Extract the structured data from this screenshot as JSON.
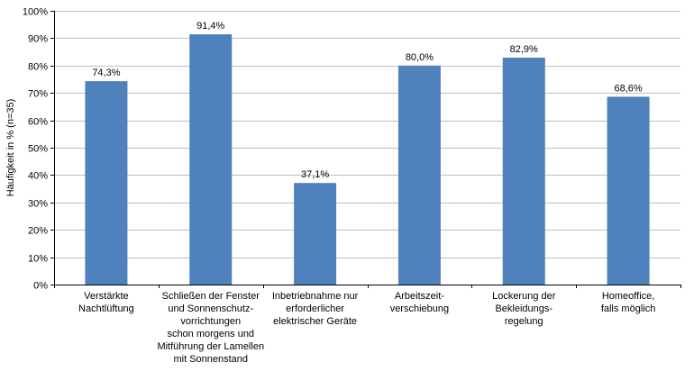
{
  "chart_data": {
    "type": "bar",
    "ylabel": "Häufigkeit in % (n=35)",
    "ylim": [
      0,
      100
    ],
    "yticks": [
      "0%",
      "10%",
      "20%",
      "30%",
      "40%",
      "50%",
      "60%",
      "70%",
      "80%",
      "90%",
      "100%"
    ],
    "grid": true,
    "bar_color": "#4f81bd",
    "categories": [
      [
        "Verstärkte",
        "Nachtlüftung"
      ],
      [
        "Schließen der Fenster",
        "und Sonnenschutz-",
        "vorrichtungen",
        "schon morgens und",
        "Mitführung der Lamellen",
        "mit Sonnenstand"
      ],
      [
        "Inbetriebnahme nur",
        "erforderlicher",
        "elektrischer Geräte"
      ],
      [
        "Arbeitszeit-",
        "verschiebung"
      ],
      [
        "Lockerung der",
        "Bekleidungs-",
        "regelung"
      ],
      [
        "Homeoffice,",
        "falls möglich"
      ]
    ],
    "values": [
      74.3,
      91.4,
      37.1,
      80.0,
      82.9,
      68.6
    ],
    "data_labels": [
      "74,3%",
      "91,4%",
      "37,1%",
      "80,0%",
      "82,9%",
      "68,6%"
    ]
  }
}
